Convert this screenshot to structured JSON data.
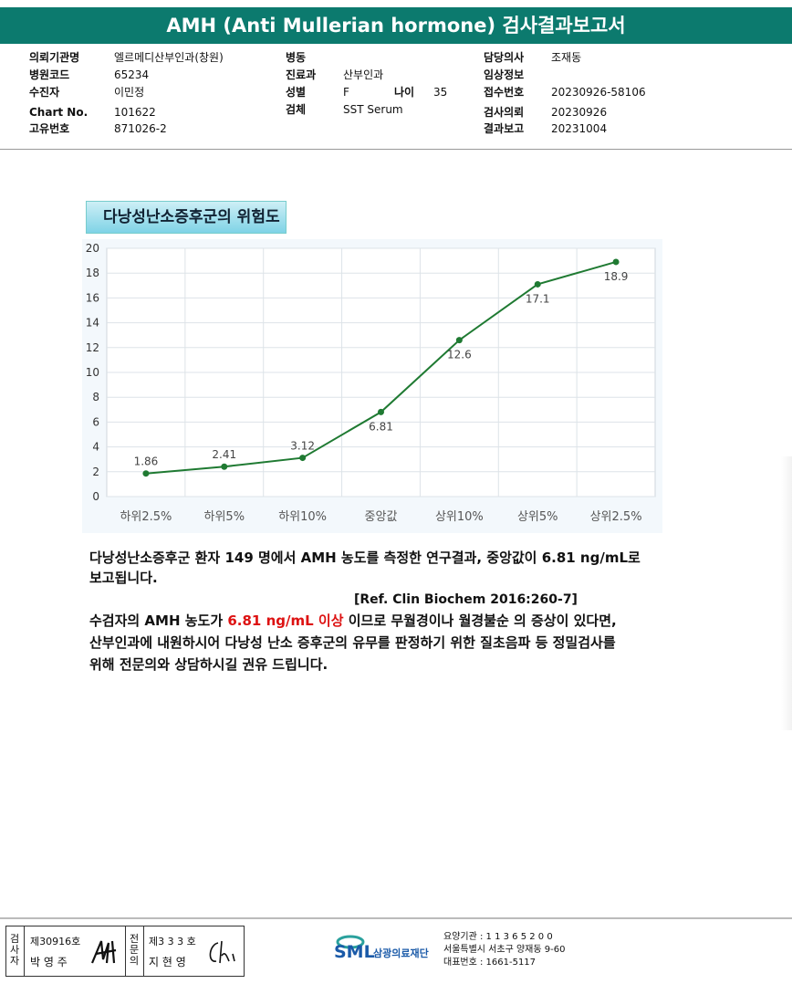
{
  "header": {
    "title": "AMH (Anti Mullerian hormone) 검사결과보고서"
  },
  "info": {
    "left": [
      {
        "k": "의뢰기관명",
        "v": "엘르메디산부인과(창원)"
      },
      {
        "k": "병원코드",
        "v": "65234"
      },
      {
        "k": "수진자",
        "v": "이민정"
      },
      {
        "k": "Chart No.",
        "v": "101622"
      },
      {
        "k": "고유번호",
        "v": "871026-2"
      }
    ],
    "mid": [
      {
        "k": "병동",
        "v": ""
      },
      {
        "k": "진료과",
        "v": "산부인과"
      },
      {
        "k": "성별",
        "v": "F"
      },
      {
        "k": "검체",
        "v": "SST Serum"
      }
    ],
    "age_label": "나이",
    "age_value": "35",
    "right": [
      {
        "k": "담당의사",
        "v": "조재동"
      },
      {
        "k": "임상정보",
        "v": ""
      },
      {
        "k": "접수번호",
        "v": "20230926-58106"
      },
      {
        "k": "검사의뢰",
        "v": "20230926"
      },
      {
        "k": "결과보고",
        "v": "20231004"
      }
    ]
  },
  "chart_title": "다낭성난소증후군의 위험도",
  "chart_data": {
    "type": "line",
    "categories": [
      "하위2.5%",
      "하위5%",
      "하위10%",
      "중앙값",
      "상위10%",
      "상위5%",
      "상위2.5%"
    ],
    "values": [
      1.86,
      2.41,
      3.12,
      6.81,
      12.6,
      17.1,
      18.9
    ],
    "value_labels": [
      "1.86",
      "2.41",
      "3.12",
      "6.81",
      "12.6",
      "17.1",
      "18.9"
    ],
    "yticks": [
      "0",
      "2",
      "4",
      "6",
      "8",
      "10",
      "12",
      "14",
      "16",
      "18",
      "20"
    ],
    "ylim": [
      0,
      20
    ],
    "grid": true,
    "color": "#1f7a32"
  },
  "text": {
    "p1_line1": "다낭성난소증후군 환자 149 명에서 AMH 농도를 측정한 연구결과, 중앙값이 6.81 ng/mL로",
    "p1_line2": "보고됩니다.",
    "ref": "[Ref. Clin Biochem 2016:260-7]",
    "p2_pre": "수검자의 AMH 농도가 ",
    "p2_red": "6.81 ng/mL 이상",
    "p2_post": " 이므로 무월경이나 월경불순 의 증상이 있다면,",
    "p2_line2": "산부인과에 내원하시어 다낭성 난소 증후군의 유무를 판정하기 위한 질초음파 등 정밀검사를",
    "p2_line3": "위해 전문의와 상담하시길 권유 드립니다."
  },
  "footer": {
    "sign1_label_vert": "검사자",
    "sign1_no": "제30916호",
    "sign1_name": "박 영 주",
    "sign2_label_vert": "전문의",
    "sign2_no": "제3 3 3 호",
    "sign2_name": "지 현 영",
    "org_logo": "SML",
    "org_name": "삼광의료재단",
    "org_code": "요양기관 : 1 1 3 6 5 2 0 0",
    "org_address": "서울특별시 서초구 양재동 9-60",
    "org_phone": "대표번호 : 1661-5117"
  }
}
